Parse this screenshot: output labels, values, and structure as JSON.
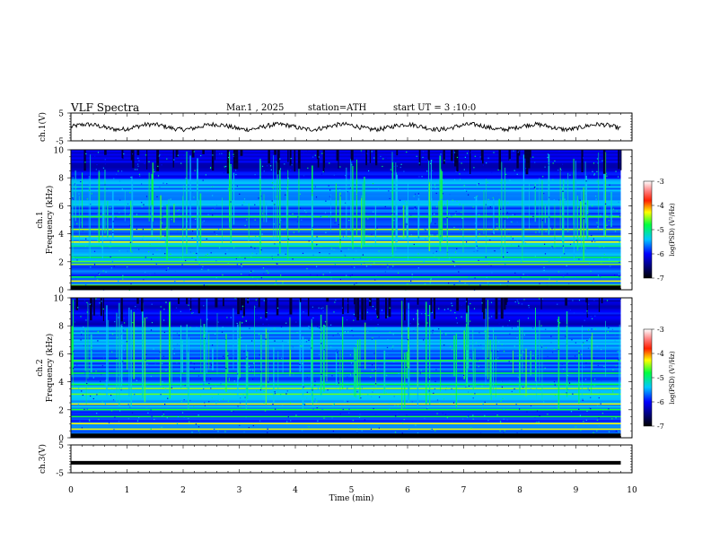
{
  "header": {
    "title": "VLF  Spectra",
    "date": "Mar.1  , 2025",
    "station": "station=ATH",
    "start": "start  UT  =   3  :10:0"
  },
  "chart_data": [
    {
      "type": "line",
      "name": "ch1-voltage",
      "ylabel": "ch.1(V)",
      "ylim": [
        -5,
        5
      ],
      "yticks": [
        "5",
        "-5"
      ],
      "xlim": [
        0,
        10
      ],
      "x_extent": 9.8,
      "description_level": 0,
      "color": "#000000"
    },
    {
      "type": "heatmap",
      "name": "ch1-spectrogram",
      "ylabel_top": "ch.1",
      "ylabel": "Frequency  (kHz)",
      "ylim": [
        0,
        10
      ],
      "yticks": [
        "0",
        "2",
        "4",
        "6",
        "8",
        "10"
      ],
      "xlim": [
        0,
        10
      ],
      "x_extent": 9.8,
      "bright_bands_khz": [
        0.3,
        0.6,
        0.9,
        1.8,
        2.0,
        2.3,
        3.1,
        3.4,
        3.8,
        4.3,
        5.2
      ],
      "colorbar": {
        "label": "log(PSD) (V²/Hz)",
        "ticks": [
          "-3",
          "-4",
          "-5",
          "-6",
          "-7"
        ],
        "range": [
          -7,
          -3
        ]
      }
    },
    {
      "type": "heatmap",
      "name": "ch2-spectrogram",
      "ylabel_top": "ch.2",
      "ylabel": "Frequency  (kHz)",
      "ylim": [
        0,
        10
      ],
      "yticks": [
        "0",
        "2",
        "4",
        "6",
        "8",
        "10"
      ],
      "xlim": [
        0,
        10
      ],
      "x_extent": 9.8,
      "bright_bands_khz": [
        0.6,
        1.0,
        1.5,
        2.0,
        2.4,
        3.1,
        3.5,
        3.8,
        4.6,
        5.5
      ],
      "colorbar": {
        "label": "log(PSD) (V²/Hz)",
        "ticks": [
          "-3",
          "-4",
          "-5",
          "-6",
          "-7"
        ],
        "range": [
          -7,
          -3
        ]
      }
    },
    {
      "type": "line",
      "name": "ch3-voltage",
      "ylabel": "ch.3(V)",
      "ylim": [
        -5,
        5
      ],
      "yticks": [
        "5",
        "-5"
      ],
      "xlim": [
        0,
        10
      ],
      "x_extent": 9.8,
      "description_level": -1.4,
      "color": "#000000"
    }
  ],
  "x_axis": {
    "label": "Time  (min)",
    "ticks": [
      "0",
      "1",
      "2",
      "3",
      "4",
      "5",
      "6",
      "7",
      "8",
      "9",
      "10"
    ]
  }
}
